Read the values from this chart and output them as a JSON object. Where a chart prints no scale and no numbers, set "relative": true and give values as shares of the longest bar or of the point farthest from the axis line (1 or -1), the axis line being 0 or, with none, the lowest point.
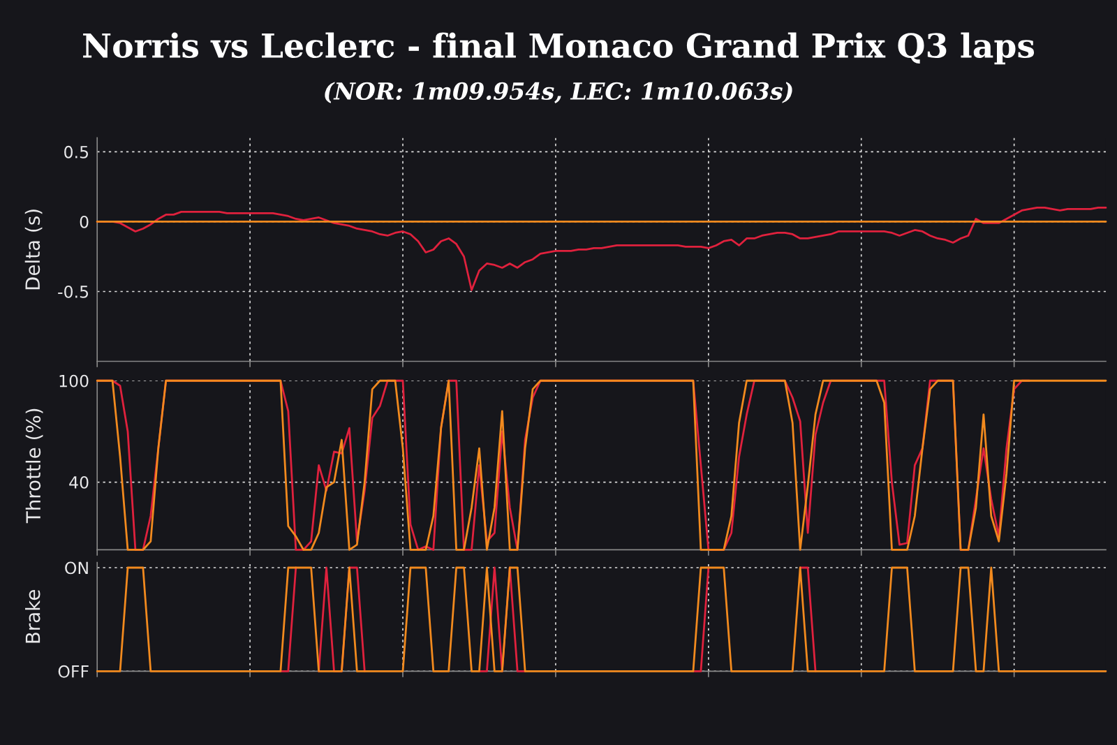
{
  "chart_data": [
    {
      "type": "line",
      "title": "Norris vs Leclerc - final Monaco Grand Prix Q3 laps",
      "subtitle": "(NOR: 1m09.954s, LEC: 1m10.063s)",
      "ylabel": "Delta (s)",
      "categories": [
        null,
        null,
        null,
        null,
        null,
        null,
        null,
        null,
        null,
        null,
        null,
        null,
        null,
        null,
        null,
        null,
        null,
        null,
        null,
        null,
        null,
        null,
        null,
        null,
        null,
        null,
        null,
        null,
        null,
        null,
        null,
        null,
        null,
        null,
        null,
        null,
        null,
        null,
        null,
        null,
        null,
        null,
        null,
        null,
        null,
        null,
        null,
        null,
        null,
        null,
        null,
        null,
        null,
        null,
        null,
        null,
        null,
        null,
        null,
        null,
        null,
        null,
        null,
        null,
        null,
        null,
        null,
        null,
        null,
        null,
        null,
        null,
        null,
        null,
        null,
        null,
        null,
        null,
        null,
        null,
        null,
        null,
        null,
        null,
        null,
        null,
        null,
        null,
        null,
        null,
        null,
        null,
        null,
        null,
        null,
        null,
        null,
        null,
        null,
        null,
        null,
        null,
        null,
        null,
        null,
        null,
        null,
        null,
        null,
        null,
        null,
        null,
        null,
        null,
        null,
        null,
        null,
        null,
        null,
        null,
        null,
        null,
        null,
        null,
        null,
        null,
        null,
        null,
        null,
        null,
        null,
        null,
        null
      ],
      "ylim": [
        -1,
        0.6
      ],
      "yticks": [
        -0.5,
        0,
        0.5
      ],
      "grid": true,
      "tick_labels": "y",
      "series": [
        {
          "color": "#e0213d",
          "values": [
            0,
            0,
            0,
            -0.01,
            -0.04,
            -0.07,
            -0.05,
            -0.02,
            0.02,
            0.05,
            0.05,
            0.07,
            0.07,
            0.07,
            0.07,
            0.07,
            0.07,
            0.06,
            0.06,
            0.06,
            0.06,
            0.06,
            0.06,
            0.06,
            0.05,
            0.04,
            0.02,
            0.01,
            0.02,
            0.03,
            0.01,
            -0.01,
            -0.02,
            -0.03,
            -0.05,
            -0.06,
            -0.07,
            -0.09,
            -0.1,
            -0.08,
            -0.07,
            -0.09,
            -0.14,
            -0.22,
            -0.2,
            -0.14,
            -0.12,
            -0.16,
            -0.25,
            -0.49,
            -0.35,
            -0.3,
            -0.31,
            -0.33,
            -0.3,
            -0.33,
            -0.29,
            -0.27,
            -0.23,
            -0.22,
            -0.21,
            -0.21,
            -0.21,
            -0.2,
            -0.2,
            -0.19,
            -0.19,
            -0.18,
            -0.17,
            -0.17,
            -0.17,
            -0.17,
            -0.17,
            -0.17,
            -0.17,
            -0.17,
            -0.17,
            -0.18,
            -0.18,
            -0.18,
            -0.19,
            -0.17,
            -0.14,
            -0.13,
            -0.17,
            -0.12,
            -0.12,
            -0.1,
            -0.09,
            -0.08,
            -0.08,
            -0.09,
            -0.12,
            -0.12,
            -0.11,
            -0.1,
            -0.09,
            -0.07,
            -0.07,
            -0.07,
            -0.07,
            -0.07,
            -0.07,
            -0.07,
            -0.08,
            -0.1,
            -0.08,
            -0.06,
            -0.07,
            -0.1,
            -0.12,
            -0.13,
            -0.15,
            -0.12,
            -0.1,
            0.02,
            -0.01,
            -0.01,
            -0.01,
            0.02,
            0.05,
            0.08,
            0.09,
            0.1,
            0.1,
            0.09,
            0.08,
            0.09,
            0.09,
            0.09,
            0.09,
            0.1,
            0.1
          ]
        },
        {
          "color": "#f28a1e",
          "values": [
            0,
            0,
            0,
            0,
            0,
            0,
            0,
            0,
            0,
            0,
            0,
            0,
            0,
            0,
            0,
            0,
            0,
            0,
            0,
            0,
            0,
            0,
            0,
            0,
            0,
            0,
            0,
            0,
            0,
            0,
            0,
            0,
            0,
            0,
            0,
            0,
            0,
            0,
            0,
            0,
            0,
            0,
            0,
            0,
            0,
            0,
            0,
            0,
            0,
            0,
            0,
            0,
            0,
            0,
            0,
            0,
            0,
            0,
            0,
            0,
            0,
            0,
            0,
            0,
            0,
            0,
            0,
            0,
            0,
            0,
            0,
            0,
            0,
            0,
            0,
            0,
            0,
            0,
            0,
            0,
            0,
            0,
            0,
            0,
            0,
            0,
            0,
            0,
            0,
            0,
            0,
            0,
            0,
            0,
            0,
            0,
            0,
            0,
            0,
            0,
            0,
            0,
            0,
            0,
            0,
            0,
            0,
            0,
            0,
            0,
            0,
            0,
            0,
            0,
            0,
            0,
            0,
            0,
            0,
            0,
            0,
            0,
            0,
            0,
            0,
            0,
            0,
            0,
            0,
            0,
            0,
            0,
            0
          ]
        }
      ]
    },
    {
      "type": "line",
      "ylabel": "Throttle (%)",
      "categories": [
        null,
        null,
        null,
        null,
        null,
        null,
        null,
        null,
        null,
        null,
        null,
        null,
        null,
        null,
        null,
        null,
        null,
        null,
        null,
        null,
        null,
        null,
        null,
        null,
        null,
        null,
        null,
        null,
        null,
        null,
        null,
        null,
        null,
        null,
        null,
        null,
        null,
        null,
        null,
        null,
        null,
        null,
        null,
        null,
        null,
        null,
        null,
        null,
        null,
        null,
        null,
        null,
        null,
        null,
        null,
        null,
        null,
        null,
        null,
        null,
        null,
        null,
        null,
        null,
        null,
        null,
        null,
        null,
        null,
        null,
        null,
        null,
        null,
        null,
        null,
        null,
        null,
        null,
        null,
        null,
        null,
        null,
        null,
        null,
        null,
        null,
        null,
        null,
        null,
        null,
        null,
        null,
        null,
        null,
        null,
        null,
        null,
        null,
        null,
        null,
        null,
        null,
        null,
        null,
        null,
        null,
        null,
        null,
        null,
        null,
        null,
        null,
        null,
        null,
        null,
        null,
        null,
        null,
        null,
        null,
        null,
        null,
        null,
        null,
        null,
        null,
        null,
        null,
        null,
        null,
        null,
        null,
        null
      ],
      "ylim": [
        0,
        100
      ],
      "yticks": [
        40,
        100
      ],
      "grid": true,
      "tick_labels": "y",
      "series": [
        {
          "color": "#e0213d",
          "values": [
            100,
            100,
            100,
            97,
            70,
            0,
            0,
            20,
            60,
            100,
            100,
            100,
            100,
            100,
            100,
            100,
            100,
            100,
            100,
            100,
            100,
            100,
            100,
            100,
            100,
            82,
            0,
            0,
            5,
            50,
            35,
            58,
            57,
            72,
            5,
            35,
            78,
            85,
            100,
            100,
            100,
            15,
            0,
            2,
            0,
            72,
            100,
            100,
            0,
            0,
            50,
            5,
            10,
            70,
            25,
            0,
            65,
            90,
            100,
            100,
            100,
            100,
            100,
            100,
            100,
            100,
            100,
            100,
            100,
            100,
            100,
            100,
            100,
            100,
            100,
            100,
            100,
            100,
            100,
            50,
            0,
            0,
            0,
            10,
            55,
            80,
            100,
            100,
            100,
            100,
            100,
            90,
            76,
            10,
            68,
            87,
            100,
            100,
            100,
            100,
            100,
            100,
            100,
            100,
            40,
            3,
            4,
            50,
            60,
            100,
            100,
            100,
            100,
            0,
            0,
            30,
            60,
            30,
            8,
            60,
            95,
            100,
            100,
            null,
            null,
            null,
            null,
            null,
            null,
            null,
            null,
            null,
            null
          ]
        },
        {
          "color": "#f28a1e",
          "values": [
            100,
            100,
            100,
            55,
            0,
            0,
            0,
            5,
            60,
            100,
            100,
            100,
            100,
            100,
            100,
            100,
            100,
            100,
            100,
            100,
            100,
            100,
            100,
            100,
            100,
            14,
            8,
            0,
            0,
            10,
            37,
            40,
            65,
            0,
            3,
            40,
            95,
            100,
            100,
            100,
            60,
            0,
            0,
            0,
            20,
            72,
            100,
            0,
            0,
            25,
            60,
            0,
            25,
            82,
            0,
            0,
            60,
            95,
            100,
            100,
            100,
            100,
            100,
            100,
            100,
            100,
            100,
            100,
            100,
            100,
            100,
            100,
            100,
            100,
            100,
            100,
            100,
            100,
            100,
            0,
            0,
            0,
            0,
            20,
            75,
            100,
            100,
            100,
            100,
            100,
            100,
            75,
            0,
            38,
            80,
            100,
            100,
            100,
            100,
            100,
            100,
            100,
            100,
            87,
            0,
            0,
            0,
            20,
            60,
            95,
            100,
            100,
            100,
            0,
            0,
            25,
            80,
            20,
            5,
            45,
            100,
            100,
            100,
            100,
            100,
            100,
            100,
            100,
            100,
            100,
            100,
            100,
            100
          ]
        }
      ]
    },
    {
      "type": "line",
      "ylabel": "Brake",
      "categories": [
        null,
        null,
        null,
        null,
        null,
        null,
        null,
        null,
        null,
        null,
        null,
        null,
        null,
        null,
        null,
        null,
        null,
        null,
        null,
        null,
        null,
        null,
        null,
        null,
        null,
        null,
        null,
        null,
        null,
        null,
        null,
        null,
        null,
        null,
        null,
        null,
        null,
        null,
        null,
        null,
        null,
        null,
        null,
        null,
        null,
        null,
        null,
        null,
        null,
        null,
        null,
        null,
        null,
        null,
        null,
        null,
        null,
        null,
        null,
        null,
        null,
        null,
        null,
        null,
        null,
        null,
        null,
        null,
        null,
        null,
        null,
        null,
        null,
        null,
        null,
        null,
        null,
        null,
        null,
        null,
        null,
        null,
        null,
        null,
        null,
        null,
        null,
        null,
        null,
        null,
        null,
        null,
        null,
        null,
        null,
        null,
        null,
        null,
        null,
        null,
        null,
        null,
        null,
        null,
        null,
        null,
        null,
        null,
        null,
        null,
        null,
        null,
        null,
        null,
        null,
        null,
        null,
        null,
        null,
        null,
        null,
        null,
        null,
        null,
        null,
        null,
        null,
        null,
        null,
        null,
        null,
        null,
        null
      ],
      "relative": true,
      "annotations": [
        "OFF",
        "ON"
      ],
      "grid": true,
      "tick_labels": "y",
      "series": [
        {
          "color": "#e0213d",
          "values": [
            null,
            null,
            null,
            null,
            null,
            null,
            null,
            null,
            null,
            null,
            null,
            null,
            null,
            null,
            null,
            null,
            null,
            null,
            null,
            null,
            null,
            null,
            null,
            null,
            0,
            0,
            1,
            null,
            null,
            0,
            1,
            0,
            0,
            1,
            1,
            0,
            null,
            null,
            null,
            null,
            null,
            null,
            null,
            null,
            null,
            null,
            null,
            null,
            null,
            null,
            0,
            0,
            1,
            0,
            1,
            0,
            0,
            null,
            null,
            null,
            null,
            null,
            null,
            null,
            null,
            null,
            null,
            null,
            null,
            null,
            null,
            null,
            null,
            null,
            null,
            null,
            null,
            null,
            0,
            0,
            1,
            null,
            null,
            null,
            null,
            null,
            null,
            null,
            null,
            null,
            null,
            null,
            1,
            1,
            0,
            null,
            null,
            null,
            null,
            null,
            null,
            null,
            null,
            null,
            null,
            null,
            null,
            null,
            null,
            null,
            null,
            null,
            null,
            null,
            null,
            null,
            null,
            null,
            null,
            null,
            null,
            null,
            null,
            null,
            null,
            null,
            null,
            null,
            null,
            null,
            null,
            null,
            null
          ]
        },
        {
          "color": "#f28a1e",
          "values": [
            0,
            0,
            0,
            0,
            1,
            1,
            1,
            0,
            0,
            0,
            0,
            0,
            0,
            0,
            0,
            0,
            0,
            0,
            0,
            0,
            0,
            0,
            0,
            0,
            0,
            1,
            1,
            1,
            1,
            0,
            0,
            0,
            0,
            1,
            0,
            0,
            0,
            0,
            0,
            0,
            0,
            1,
            1,
            1,
            0,
            0,
            0,
            1,
            1,
            0,
            0,
            1,
            0,
            0,
            1,
            1,
            0,
            0,
            0,
            0,
            0,
            0,
            0,
            0,
            0,
            0,
            0,
            0,
            0,
            0,
            0,
            0,
            0,
            0,
            0,
            0,
            0,
            0,
            0,
            1,
            1,
            1,
            1,
            0,
            0,
            0,
            0,
            0,
            0,
            0,
            0,
            0,
            1,
            0,
            0,
            0,
            0,
            0,
            0,
            0,
            0,
            0,
            0,
            0,
            1,
            1,
            1,
            0,
            0,
            0,
            0,
            0,
            0,
            1,
            1,
            0,
            0,
            1,
            0,
            0,
            0,
            0,
            0,
            0,
            0,
            0,
            0,
            0,
            0,
            0,
            0,
            0,
            0
          ]
        }
      ]
    }
  ]
}
